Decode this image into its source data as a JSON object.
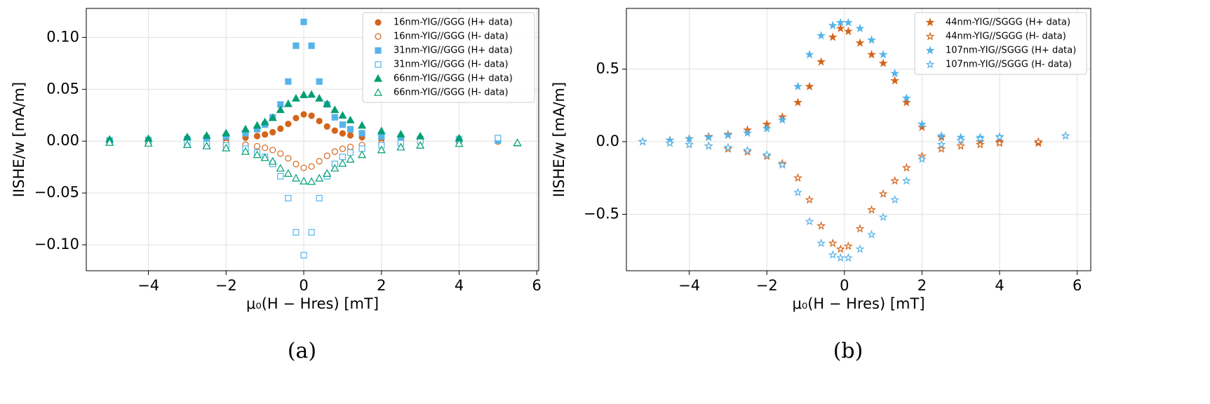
{
  "chart_data": [
    {
      "type": "scatter",
      "caption": "(a)",
      "xlabel": "μ₀(H − Hres) [mT]",
      "ylabel": "IISHE/w [mA/m]",
      "xlim": [
        -5.6,
        6.05
      ],
      "ylim": [
        -0.125,
        0.128
      ],
      "xticks": [
        {
          "value": -4,
          "label": "−4"
        },
        {
          "value": -2,
          "label": "−2"
        },
        0,
        2,
        4,
        6
      ],
      "yticks": [
        {
          "value": -0.1,
          "label": "−0.10"
        },
        {
          "value": -0.05,
          "label": "−0.05"
        },
        {
          "value": 0,
          "label": "0.00"
        },
        {
          "value": 0.05,
          "label": "0.05"
        },
        {
          "value": 0.1,
          "label": "0.10"
        }
      ],
      "grid": true,
      "legend": "upper right",
      "series": [
        {
          "name": "16nm-YIG//GGG (H+ data)",
          "color": "#d4651a",
          "marker": "circle",
          "filled": true,
          "x": [
            -5,
            -4,
            -3,
            -2.5,
            -2,
            -1.5,
            -1.2,
            -1,
            -0.8,
            -0.6,
            -0.4,
            -0.2,
            0,
            0.2,
            0.4,
            0.6,
            0.8,
            1,
            1.2,
            1.5,
            2,
            2.5,
            3,
            4,
            5
          ],
          "values": [
            0.0004,
            0.0006,
            0.001,
            0.0014,
            0.002,
            0.0034,
            0.0049,
            0.0064,
            0.0086,
            0.012,
            0.0166,
            0.0222,
            0.0258,
            0.0245,
            0.0194,
            0.0141,
            0.0101,
            0.0074,
            0.0056,
            0.0038,
            0.0022,
            0.0015,
            0.001,
            0.0006,
            0.0004
          ]
        },
        {
          "name": "16nm-YIG//GGG (H- data)",
          "color": "#d4651a",
          "marker": "circle",
          "filled": false,
          "x": [
            -5,
            -4,
            -3,
            -2.5,
            -2,
            -1.5,
            -1.2,
            -1,
            -0.8,
            -0.6,
            -0.4,
            -0.2,
            0,
            0.2,
            0.4,
            0.6,
            0.8,
            1,
            1.2,
            1.5,
            2,
            2.5,
            3,
            4,
            5
          ],
          "values": [
            -0.0004,
            -0.0006,
            -0.001,
            -0.0014,
            -0.002,
            -0.0034,
            -0.0049,
            -0.0064,
            -0.0086,
            -0.012,
            -0.0166,
            -0.0222,
            -0.0258,
            -0.0245,
            -0.0194,
            -0.0141,
            -0.0101,
            -0.0074,
            -0.0056,
            -0.0038,
            -0.0022,
            -0.0015,
            -0.001,
            -0.0006,
            -0.0004
          ]
        },
        {
          "name": "31nm-YIG//GGG (H+ data)",
          "color": "#56b4e9",
          "marker": "square",
          "filled": true,
          "x": [
            -5,
            -4,
            -3,
            -2.5,
            -2,
            -1.5,
            -1.2,
            -1,
            -0.8,
            -0.6,
            -0.4,
            -0.2,
            0,
            0.2,
            0.4,
            0.6,
            0.8,
            1,
            1.2,
            1.5,
            2,
            2.5,
            3,
            4,
            5
          ],
          "values": [
            0.0007,
            0.0011,
            0.002,
            0.0029,
            0.0044,
            0.0076,
            0.0115,
            0.0159,
            0.023,
            0.0354,
            0.0575,
            0.092,
            0.115,
            0.092,
            0.0575,
            0.0354,
            0.023,
            0.0159,
            0.0115,
            0.0076,
            0.0044,
            0.0029,
            0.002,
            0.0011,
            0.0007
          ]
        },
        {
          "name": "31nm-YIG//GGG (H- data)",
          "color": "#56b4e9",
          "marker": "square",
          "filled": false,
          "x": [
            -5,
            -4,
            -3,
            -2.5,
            -2,
            -1.5,
            -1.2,
            -1,
            -0.8,
            -0.6,
            -0.4,
            -0.2,
            0,
            0.2,
            0.4,
            0.6,
            0.8,
            1,
            1.2,
            1.5,
            2,
            2.5,
            3,
            4,
            5
          ],
          "values": [
            -0.0007,
            -0.001,
            -0.0019,
            -0.0028,
            -0.0042,
            -0.0073,
            -0.011,
            -0.0152,
            -0.022,
            -0.0339,
            -0.055,
            -0.088,
            -0.11,
            -0.088,
            -0.055,
            -0.0339,
            -0.022,
            -0.0152,
            -0.011,
            -0.0073,
            -0.004,
            -0.002,
            0,
            0.002,
            0.003
          ]
        },
        {
          "name": "66nm-YIG//GGG (H+ data)",
          "color": "#009e73",
          "marker": "triangle",
          "filled": true,
          "x": [
            -5,
            -4,
            -3,
            -2.5,
            -2,
            -1.5,
            -1.2,
            -1,
            -0.8,
            -0.6,
            -0.4,
            -0.2,
            0,
            0.2,
            0.4,
            0.6,
            0.8,
            1,
            1.2,
            1.5,
            2,
            2.5,
            3,
            4,
            5.5
          ],
          "values": [
            0.0017,
            0.0024,
            0.004,
            0.0054,
            0.0077,
            0.0116,
            0.0152,
            0.0185,
            0.0225,
            0.0302,
            0.036,
            0.0413,
            0.0446,
            0.045,
            0.0413,
            0.036,
            0.0302,
            0.0248,
            0.0203,
            0.0152,
            0.0098,
            0.0067,
            0.0048,
            0.0028,
            -0.0018
          ]
        },
        {
          "name": "66nm-YIG//GGG (H- data)",
          "color": "#009e73",
          "marker": "triangle",
          "filled": false,
          "x": [
            -5,
            -4,
            -3,
            -2.5,
            -2,
            -1.5,
            -1.2,
            -1,
            -0.8,
            -0.6,
            -0.4,
            -0.2,
            0,
            0.2,
            0.4,
            0.6,
            0.8,
            1,
            1.2,
            1.5,
            2,
            2.5,
            3,
            4,
            5.5
          ],
          "values": [
            -0.0014,
            -0.0021,
            -0.0035,
            -0.0047,
            -0.0067,
            -0.01,
            -0.0132,
            -0.016,
            -0.0195,
            -0.0262,
            -0.0312,
            -0.0358,
            -0.0386,
            -0.039,
            -0.0358,
            -0.0312,
            -0.0262,
            -0.0215,
            -0.0176,
            -0.0132,
            -0.0085,
            -0.0058,
            -0.0041,
            -0.0024,
            -0.0016
          ]
        }
      ]
    },
    {
      "type": "scatter",
      "caption": "(b)",
      "xlabel": "μ₀(H − Hres) [mT]",
      "ylabel": "IISHE/w [mA/m]",
      "xlim": [
        -5.62,
        6.35
      ],
      "ylim": [
        -0.889,
        0.918
      ],
      "xticks": [
        {
          "value": -4,
          "label": "−4"
        },
        {
          "value": -2,
          "label": "−2"
        },
        0,
        2,
        4,
        6
      ],
      "yticks": [
        {
          "value": -0.5,
          "label": "−0.5"
        },
        {
          "value": 0,
          "label": "0.0"
        },
        0.5
      ],
      "grid": true,
      "legend": "upper right",
      "series": [
        {
          "name": "44nm-YIG//SGGG (H+ data)",
          "color": "#d4651a",
          "marker": "star",
          "filled": true,
          "x": [
            -5.2,
            -4.5,
            -4,
            -3.5,
            -3,
            -2.5,
            -2,
            -1.6,
            -1.2,
            -0.9,
            -0.6,
            -0.3,
            -0.1,
            0.1,
            0.4,
            0.7,
            1,
            1.3,
            1.6,
            2,
            2.5,
            3,
            3.5,
            4,
            5
          ],
          "values": [
            0,
            0.01,
            0.02,
            0.035,
            0.05,
            0.08,
            0.12,
            0.17,
            0.27,
            0.38,
            0.55,
            0.72,
            0.78,
            0.76,
            0.68,
            0.6,
            0.54,
            0.42,
            0.27,
            0.1,
            0.03,
            0.01,
            0,
            0,
            -0.01
          ]
        },
        {
          "name": "44nm-YIG//SGGG (H- data)",
          "color": "#d4651a",
          "marker": "star",
          "filled": false,
          "x": [
            -5.2,
            -4.5,
            -4,
            -3.5,
            -3,
            -2.5,
            -2,
            -1.6,
            -1.2,
            -0.9,
            -0.6,
            -0.3,
            -0.1,
            0.1,
            0.4,
            0.7,
            1,
            1.3,
            1.6,
            2,
            2.5,
            3,
            3.5,
            4,
            5
          ],
          "values": [
            0,
            -0.01,
            -0.02,
            -0.03,
            -0.05,
            -0.07,
            -0.1,
            -0.15,
            -0.25,
            -0.4,
            -0.58,
            -0.7,
            -0.74,
            -0.72,
            -0.6,
            -0.47,
            -0.36,
            -0.27,
            -0.18,
            -0.1,
            -0.05,
            -0.03,
            -0.02,
            -0.01,
            0
          ]
        },
        {
          "name": "107nm-YIG//SGGG (H+ data)",
          "color": "#56b4e9",
          "marker": "star",
          "filled": true,
          "x": [
            -5.2,
            -4.5,
            -4,
            -3.5,
            -3,
            -2.5,
            -2,
            -1.6,
            -1.2,
            -0.9,
            -0.6,
            -0.3,
            -0.1,
            0.1,
            0.4,
            0.7,
            1,
            1.3,
            1.6,
            2,
            2.5,
            3,
            3.5,
            4,
            5.7
          ],
          "values": [
            0,
            0.01,
            0.02,
            0.03,
            0.045,
            0.06,
            0.09,
            0.15,
            0.38,
            0.6,
            0.73,
            0.8,
            0.82,
            0.82,
            0.78,
            0.7,
            0.6,
            0.47,
            0.3,
            0.12,
            0.04,
            0.03,
            0.03,
            0.035,
            0.04
          ]
        },
        {
          "name": "107nm-YIG//SGGG (H- data)",
          "color": "#56b4e9",
          "marker": "star",
          "filled": false,
          "x": [
            -5.2,
            -4.5,
            -4,
            -3.5,
            -3,
            -2.5,
            -2,
            -1.6,
            -1.2,
            -0.9,
            -0.6,
            -0.3,
            -0.1,
            0.1,
            0.4,
            0.7,
            1,
            1.3,
            1.6,
            2,
            2.5,
            3,
            3.5,
            4,
            5.7
          ],
          "values": [
            0,
            -0.01,
            -0.02,
            -0.03,
            -0.04,
            -0.06,
            -0.09,
            -0.16,
            -0.35,
            -0.55,
            -0.7,
            -0.78,
            -0.8,
            -0.8,
            -0.74,
            -0.64,
            -0.52,
            -0.4,
            -0.27,
            -0.12,
            -0.02,
            0.01,
            0.02,
            0.03,
            0.04
          ]
        }
      ]
    }
  ]
}
